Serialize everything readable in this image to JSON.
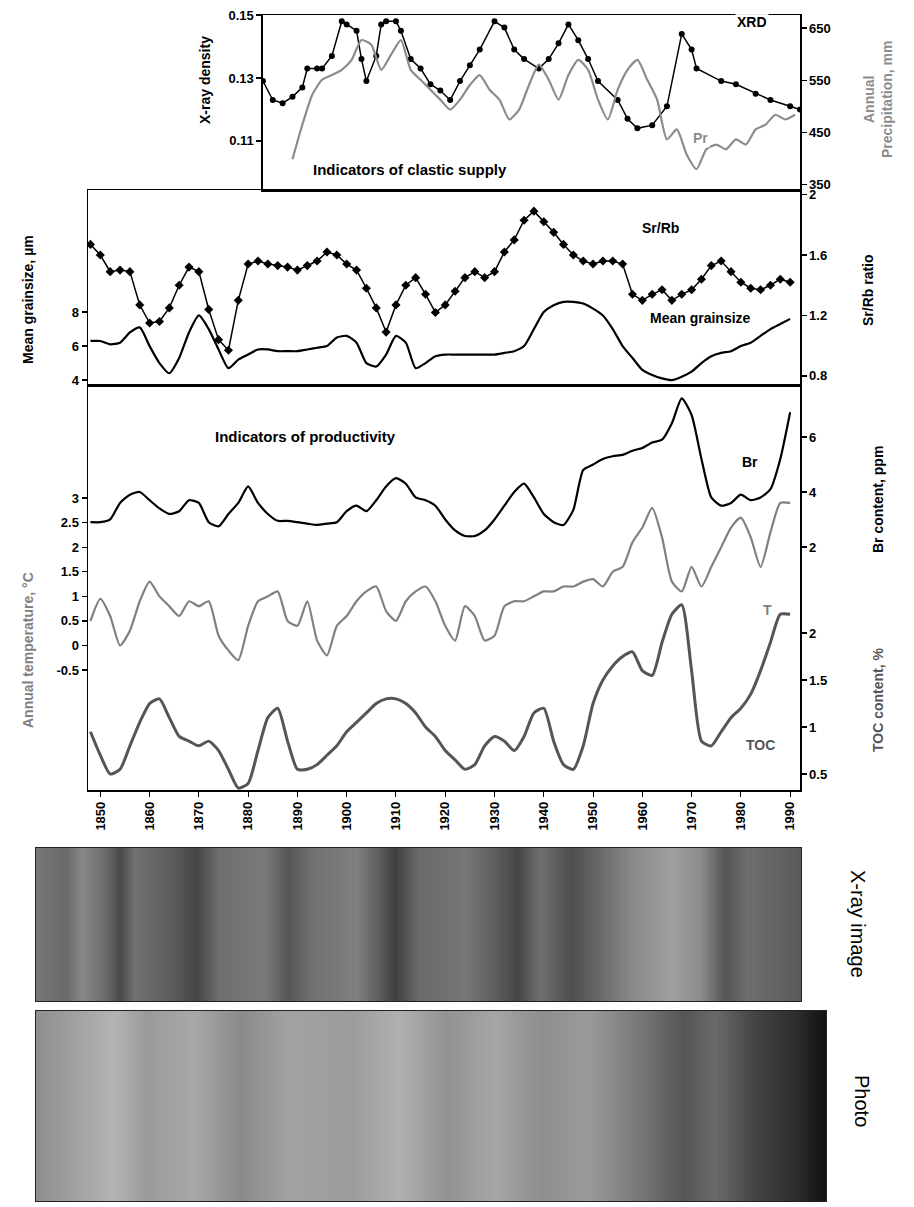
{
  "chart_data": [
    {
      "type": "line",
      "title": "Indicators of clastic supply",
      "tick_labels": "y",
      "xlim": [
        1883,
        1992
      ],
      "y_label": "X-ray density",
      "ylim": [
        0.0944,
        0.15
      ],
      "yticks": [
        0.11,
        0.13,
        0.15
      ],
      "y2_label": "Annual Precipitation, mm",
      "y2lim": [
        340,
        675
      ],
      "y2ticks": [
        350,
        450,
        550,
        650
      ],
      "series": [
        {
          "name": "XRD",
          "color": "#000000",
          "marker": "circle",
          "axis": "y",
          "x": [
            1883,
            1885,
            1887,
            1889,
            1891,
            1892,
            1894,
            1895,
            1897,
            1899,
            1900,
            1902,
            1903,
            1904,
            1906,
            1907,
            1908,
            1910,
            1911,
            1913,
            1915,
            1917,
            1919,
            1921,
            1923,
            1925,
            1927,
            1930,
            1932,
            1934,
            1936,
            1939,
            1941,
            1943,
            1945,
            1947,
            1949,
            1951,
            1955,
            1957,
            1959,
            1962,
            1965,
            1968,
            1970,
            1971,
            1976,
            1979,
            1983,
            1986,
            1990,
            1992
          ],
          "values": [
            0.129,
            0.123,
            0.122,
            0.124,
            0.127,
            0.133,
            0.133,
            0.133,
            0.137,
            0.148,
            0.147,
            0.145,
            0.136,
            0.129,
            0.137,
            0.147,
            0.148,
            0.148,
            0.145,
            0.136,
            0.133,
            0.128,
            0.126,
            0.123,
            0.129,
            0.134,
            0.139,
            0.148,
            0.146,
            0.139,
            0.136,
            0.133,
            0.136,
            0.141,
            0.147,
            0.142,
            0.136,
            0.129,
            0.123,
            0.117,
            0.114,
            0.115,
            0.121,
            0.144,
            0.139,
            0.133,
            0.129,
            0.128,
            0.125,
            0.123,
            0.121,
            0.12
          ]
        },
        {
          "name": "Pr",
          "color": "#8c8c8c",
          "axis": "y2",
          "x": [
            1889,
            1891,
            1893,
            1895,
            1897,
            1899,
            1901,
            1903,
            1905,
            1907,
            1909,
            1911,
            1913,
            1915,
            1917,
            1919,
            1921,
            1923,
            1925,
            1927,
            1929,
            1931,
            1933,
            1935,
            1937,
            1939,
            1941,
            1943,
            1945,
            1947,
            1949,
            1951,
            1953,
            1955,
            1957,
            1959,
            1961,
            1963,
            1965,
            1967,
            1969,
            1971,
            1973,
            1975,
            1977,
            1979,
            1981,
            1983,
            1985,
            1987,
            1989,
            1991
          ],
          "values": [
            399,
            465,
            522,
            551,
            560,
            570,
            589,
            627,
            618,
            570,
            599,
            627,
            570,
            551,
            532,
            513,
            494,
            513,
            541,
            560,
            532,
            513,
            475,
            494,
            541,
            580,
            551,
            513,
            560,
            589,
            570,
            513,
            475,
            532,
            570,
            589,
            551,
            513,
            437,
            456,
            408,
            380,
            418,
            427,
            418,
            437,
            427,
            456,
            465,
            484,
            475,
            484
          ]
        }
      ]
    },
    {
      "type": "line",
      "tick_labels": "y",
      "xlim": [
        1847.5,
        1992
      ],
      "x": [
        1848,
        1850,
        1852,
        1854,
        1856,
        1858,
        1860,
        1862,
        1864,
        1866,
        1868,
        1870,
        1872,
        1874,
        1876,
        1878,
        1880,
        1882,
        1884,
        1886,
        1888,
        1890,
        1892,
        1894,
        1896,
        1898,
        1900,
        1902,
        1904,
        1906,
        1908,
        1910,
        1912,
        1914,
        1916,
        1918,
        1920,
        1922,
        1924,
        1926,
        1928,
        1930,
        1932,
        1934,
        1936,
        1938,
        1940,
        1942,
        1944,
        1946,
        1948,
        1950,
        1952,
        1954,
        1956,
        1958,
        1960,
        1962,
        1964,
        1966,
        1968,
        1970,
        1972,
        1974,
        1976,
        1978,
        1980,
        1982,
        1984,
        1986,
        1988,
        1990
      ],
      "y_label": "Mean grainsize, µm",
      "ylim": [
        3.71,
        15.18
      ],
      "yticks": [
        4,
        6,
        8
      ],
      "y2_label": "Sr/Rb ratio",
      "y2lim": [
        0.74,
        2.03
      ],
      "y2ticks": [
        0.8,
        1.2,
        1.6,
        2
      ],
      "series": [
        {
          "name": "Sr/Rb",
          "color": "#000000",
          "marker": "diamond",
          "axis": "y2",
          "values": [
            1.67,
            1.6,
            1.49,
            1.5,
            1.49,
            1.27,
            1.15,
            1.16,
            1.25,
            1.4,
            1.52,
            1.49,
            1.24,
            1.04,
            0.97,
            1.3,
            1.54,
            1.56,
            1.54,
            1.53,
            1.52,
            1.5,
            1.53,
            1.56,
            1.62,
            1.6,
            1.54,
            1.5,
            1.38,
            1.25,
            1.09,
            1.27,
            1.4,
            1.45,
            1.34,
            1.22,
            1.27,
            1.36,
            1.45,
            1.49,
            1.45,
            1.49,
            1.62,
            1.7,
            1.83,
            1.89,
            1.82,
            1.75,
            1.67,
            1.6,
            1.56,
            1.54,
            1.56,
            1.56,
            1.54,
            1.34,
            1.3,
            1.34,
            1.37,
            1.3,
            1.34,
            1.37,
            1.44,
            1.53,
            1.56,
            1.49,
            1.42,
            1.38,
            1.37,
            1.4,
            1.44,
            1.42
          ]
        },
        {
          "name": "Mean grainsize",
          "color": "#000000",
          "axis": "y",
          "values": [
            6.3,
            6.3,
            6.1,
            6.2,
            6.8,
            7.1,
            6.0,
            5.0,
            4.4,
            5.3,
            6.8,
            7.8,
            7.0,
            5.8,
            4.7,
            5.2,
            5.5,
            5.8,
            5.8,
            5.7,
            5.7,
            5.7,
            5.8,
            5.9,
            6.0,
            6.5,
            6.6,
            6.2,
            5.0,
            4.8,
            5.5,
            6.6,
            6.2,
            4.7,
            5.0,
            5.4,
            5.5,
            5.5,
            5.5,
            5.5,
            5.5,
            5.5,
            5.6,
            5.7,
            6.0,
            7.0,
            8.0,
            8.4,
            8.6,
            8.6,
            8.5,
            8.2,
            7.8,
            7.0,
            6.0,
            5.3,
            4.6,
            4.3,
            4.1,
            4.0,
            4.2,
            4.5,
            5.0,
            5.4,
            5.6,
            5.7,
            6.0,
            6.2,
            6.6,
            7.0,
            7.3,
            7.6
          ]
        }
      ]
    },
    {
      "type": "line",
      "title": "Indicators of productivity",
      "xlim": [
        1847.5,
        1992
      ],
      "xticks": [
        1850,
        1860,
        1870,
        1880,
        1890,
        1900,
        1910,
        1920,
        1930,
        1940,
        1950,
        1960,
        1970,
        1980,
        1990
      ],
      "x": [
        1848,
        1850,
        1852,
        1854,
        1856,
        1858,
        1860,
        1862,
        1864,
        1866,
        1868,
        1870,
        1872,
        1874,
        1876,
        1878,
        1880,
        1882,
        1884,
        1886,
        1888,
        1890,
        1892,
        1894,
        1896,
        1898,
        1900,
        1902,
        1904,
        1906,
        1908,
        1910,
        1912,
        1914,
        1916,
        1918,
        1920,
        1922,
        1924,
        1926,
        1928,
        1930,
        1932,
        1934,
        1936,
        1938,
        1940,
        1942,
        1944,
        1946,
        1948,
        1950,
        1952,
        1954,
        1956,
        1958,
        1960,
        1962,
        1964,
        1966,
        1968,
        1970,
        1972,
        1974,
        1976,
        1978,
        1980,
        1982,
        1984,
        1986,
        1988,
        1990
      ],
      "y_label": "Annual temperature, °C",
      "ylim": [
        -2.94,
        5.3
      ],
      "yticks": [
        -0.5,
        0,
        0.5,
        1,
        1.5,
        2,
        2.5,
        3
      ],
      "y2_label": "Br content, ppm",
      "y2lim": [
        -6.84,
        7.89
      ],
      "y2ticks": [
        2,
        4,
        6
      ],
      "y3_label": "TOC content, %",
      "y3lim": [
        0.33,
        4.64
      ],
      "y3ticks": [
        0.5,
        1,
        1.5,
        2
      ],
      "series": [
        {
          "name": "Br",
          "color": "#000000",
          "axis": "y2",
          "values": [
            2.9,
            2.9,
            3.0,
            3.6,
            3.9,
            4.0,
            3.7,
            3.4,
            3.2,
            3.3,
            3.7,
            3.6,
            2.9,
            2.75,
            3.2,
            3.6,
            4.2,
            3.6,
            3.2,
            2.95,
            2.95,
            2.9,
            2.85,
            2.8,
            2.85,
            2.9,
            3.3,
            3.5,
            3.3,
            3.7,
            4.2,
            4.5,
            4.3,
            3.8,
            3.7,
            3.5,
            3.0,
            2.6,
            2.4,
            2.4,
            2.6,
            3.0,
            3.5,
            4.0,
            4.3,
            3.8,
            3.2,
            2.9,
            2.8,
            3.35,
            4.8,
            5.0,
            5.2,
            5.3,
            5.35,
            5.5,
            5.6,
            5.8,
            5.9,
            6.5,
            7.4,
            6.8,
            5.2,
            3.8,
            3.5,
            3.6,
            3.9,
            3.7,
            3.8,
            4.1,
            5.2,
            6.9
          ]
        },
        {
          "name": "T",
          "color": "#808080",
          "axis": "y",
          "values": [
            0.5,
            0.95,
            0.6,
            0.0,
            0.3,
            0.9,
            1.3,
            1.0,
            0.8,
            0.6,
            0.9,
            0.8,
            0.9,
            0.2,
            -0.1,
            -0.3,
            0.4,
            0.9,
            1.0,
            1.1,
            0.5,
            0.4,
            0.9,
            0.1,
            -0.2,
            0.4,
            0.6,
            0.9,
            1.1,
            1.2,
            0.7,
            0.5,
            0.9,
            1.1,
            1.2,
            0.9,
            0.4,
            0.1,
            0.8,
            0.6,
            0.1,
            0.2,
            0.8,
            0.9,
            0.9,
            1.0,
            1.1,
            1.1,
            1.2,
            1.2,
            1.3,
            1.35,
            1.2,
            1.5,
            1.6,
            2.1,
            2.4,
            2.8,
            2.2,
            1.3,
            1.1,
            1.6,
            1.2,
            1.6,
            2.0,
            2.4,
            2.6,
            2.2,
            1.6,
            2.3,
            2.9,
            2.9
          ]
        },
        {
          "name": "TOC",
          "color": "#555555",
          "axis": "y3",
          "values": [
            0.95,
            0.7,
            0.5,
            0.55,
            0.8,
            1.05,
            1.25,
            1.3,
            1.1,
            0.9,
            0.85,
            0.8,
            0.85,
            0.75,
            0.55,
            0.35,
            0.4,
            0.75,
            1.1,
            1.2,
            0.85,
            0.55,
            0.55,
            0.6,
            0.7,
            0.8,
            0.95,
            1.05,
            1.15,
            1.25,
            1.3,
            1.3,
            1.25,
            1.15,
            1.0,
            0.9,
            0.75,
            0.65,
            0.55,
            0.6,
            0.8,
            0.9,
            0.85,
            0.75,
            0.9,
            1.15,
            1.2,
            0.85,
            0.6,
            0.55,
            0.8,
            1.25,
            1.5,
            1.65,
            1.75,
            1.8,
            1.6,
            1.55,
            1.9,
            2.2,
            2.3,
            1.6,
            0.85,
            0.8,
            0.95,
            1.1,
            1.2,
            1.35,
            1.6,
            1.9,
            2.2,
            2.2
          ]
        }
      ]
    }
  ],
  "core_images": [
    {
      "label": "X-ray image"
    },
    {
      "label": "Photo"
    }
  ]
}
